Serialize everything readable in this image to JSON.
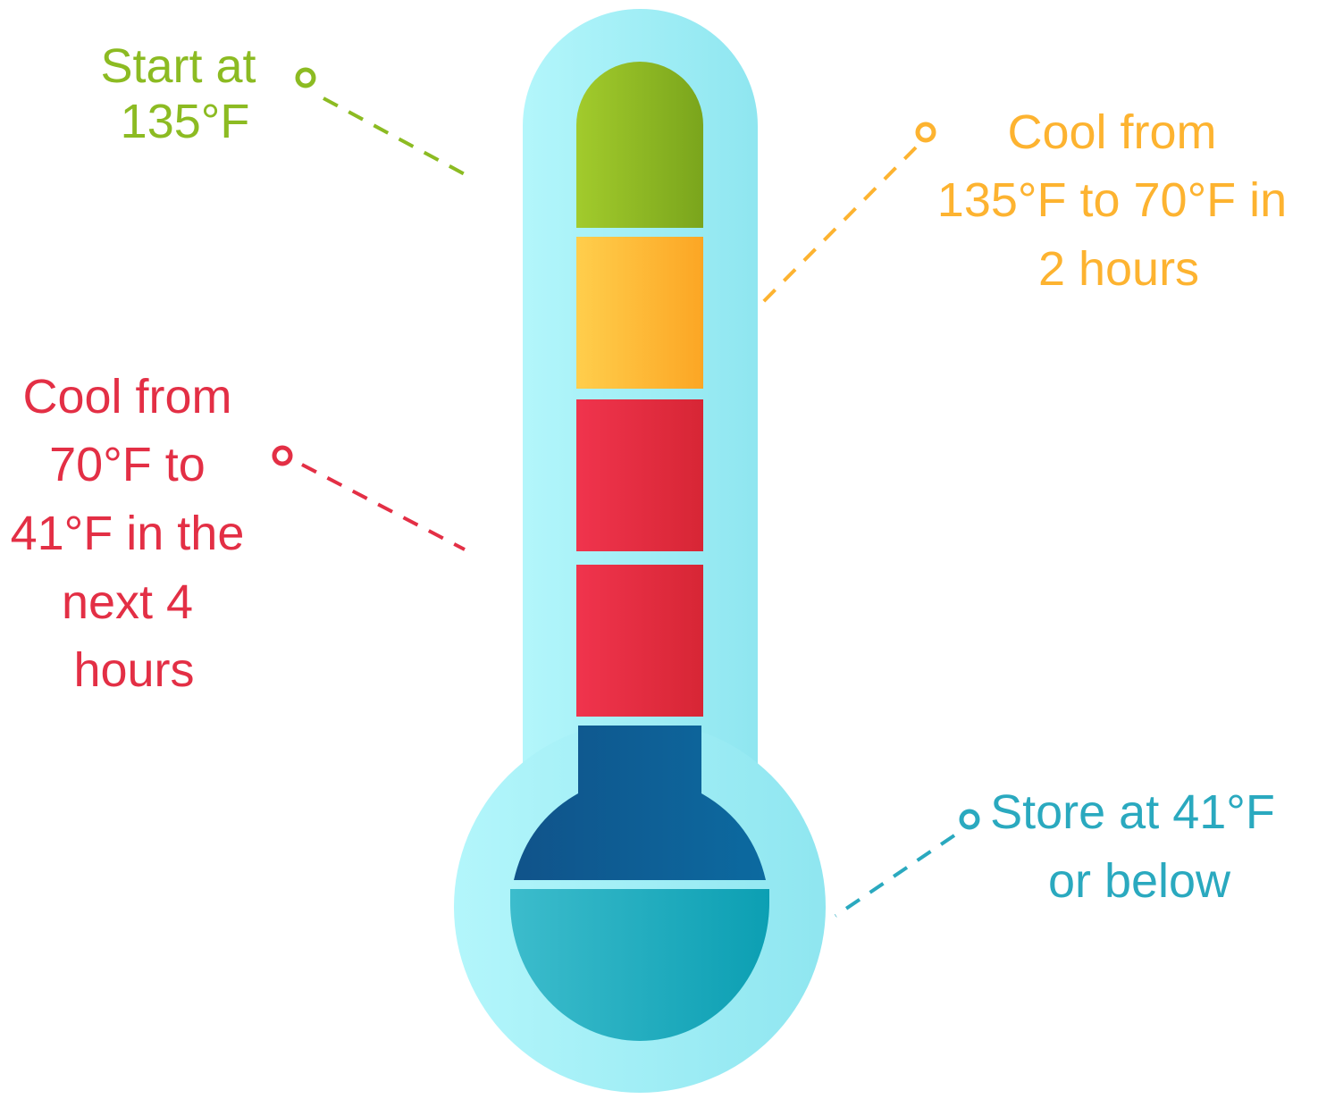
{
  "labels": [
    {
      "lines": [
        "Start at",
        "135°F"
      ]
    },
    {
      "lines": [
        "Cool from",
        "135°F to 70°F in",
        "2 hours"
      ]
    },
    {
      "lines": [
        "Cool from",
        "70°F to",
        "41°F in the",
        "next 4",
        "hours"
      ]
    },
    {
      "lines": [
        "Store at 41°F",
        "or below"
      ]
    }
  ]
}
